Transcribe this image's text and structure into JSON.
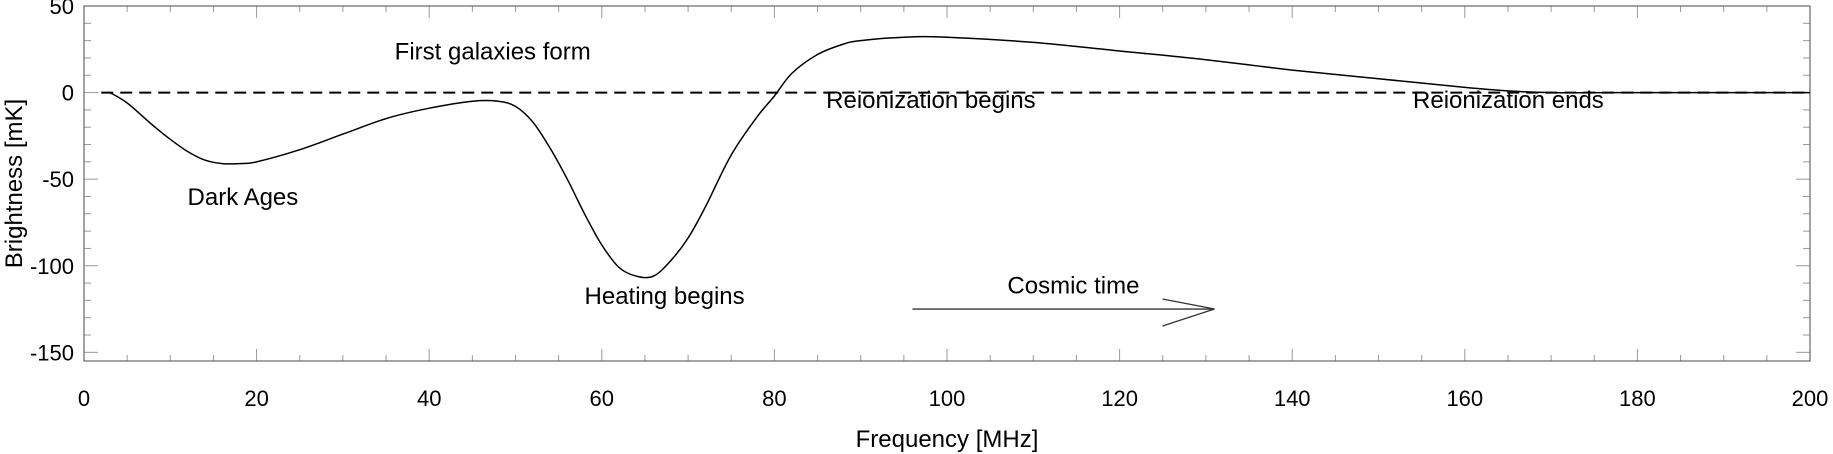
{
  "chart_data": {
    "type": "line",
    "xlabel": "Frequency [MHz]",
    "ylabel": "Brightness [mK]",
    "xlim": [
      0,
      200
    ],
    "ylim": [
      -155,
      50
    ],
    "x_ticks": [
      0,
      20,
      40,
      60,
      80,
      100,
      120,
      140,
      160,
      180,
      200
    ],
    "x_tick_labels": [
      "0",
      "20",
      "40",
      "60",
      "80",
      "100",
      "120",
      "140",
      "160",
      "180",
      "200"
    ],
    "y_ticks": [
      50,
      0,
      -50,
      -100,
      -150
    ],
    "y_tick_labels": [
      "50",
      "0",
      "-50",
      "-100",
      "-150"
    ],
    "grid": false,
    "reference_line": {
      "y": 0,
      "style": "dashed"
    },
    "series": [
      {
        "x": [
          3,
          5,
          8,
          10,
          12,
          14,
          16,
          18,
          20,
          25,
          30,
          35,
          40,
          45,
          48,
          50,
          52,
          54,
          56,
          58,
          60,
          62,
          64,
          66,
          68,
          70,
          72,
          75,
          78,
          80,
          82,
          85,
          88,
          90,
          95,
          100,
          110,
          120,
          130,
          140,
          150,
          160,
          165,
          170,
          180,
          190,
          200
        ],
        "y": [
          0,
          -6,
          -19,
          -27,
          -34,
          -39,
          -41,
          -41,
          -40,
          -33,
          -24,
          -15,
          -9,
          -5,
          -5,
          -8,
          -17,
          -32,
          -50,
          -70,
          -88,
          -101,
          -106,
          -106,
          -97,
          -84,
          -66,
          -36,
          -14,
          -2,
          11,
          22,
          28,
          30,
          32,
          32,
          29,
          24,
          19,
          13,
          8,
          3,
          1,
          0,
          0,
          0,
          0
        ]
      }
    ],
    "annotations": [
      {
        "text": "First galaxies form",
        "x": 36,
        "y": 19
      },
      {
        "text": "Dark Ages",
        "x": 12,
        "y": -65
      },
      {
        "text": "Heating begins",
        "x": 58,
        "y": -122
      },
      {
        "text": "Reionization begins",
        "x": 86,
        "y": -9
      },
      {
        "text": "Reionization ends",
        "x": 154,
        "y": -9
      },
      {
        "text": "Cosmic time",
        "x": 107,
        "y": -116
      }
    ],
    "arrow": {
      "from": [
        96,
        -125
      ],
      "to": [
        131,
        -125
      ]
    }
  }
}
